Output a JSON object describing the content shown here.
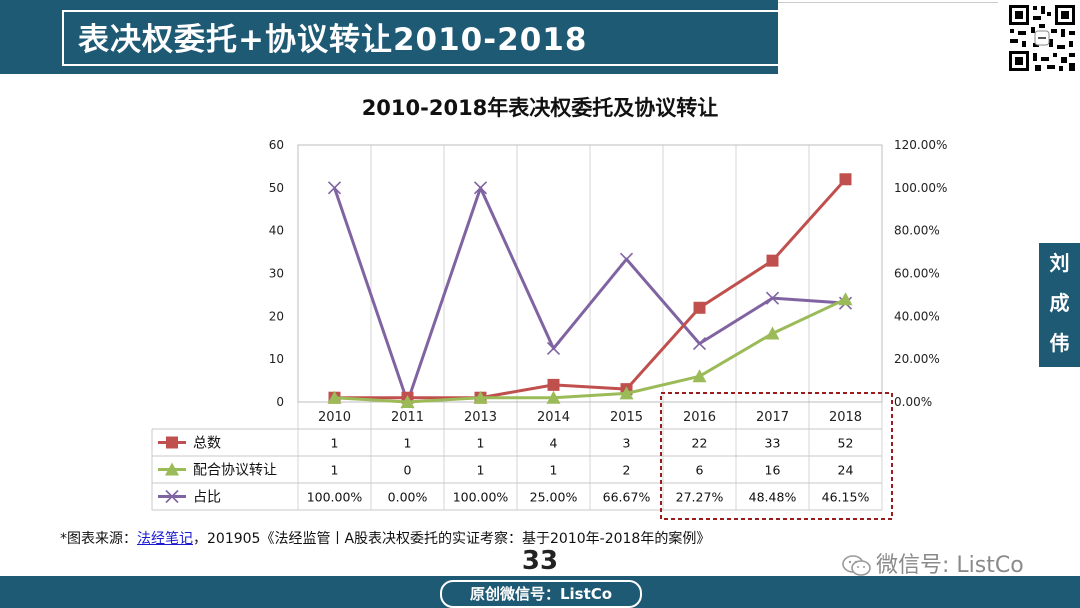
{
  "header": {
    "title": "表决权委托+协议转让2010-2018"
  },
  "side_label": [
    "刘",
    "成",
    "伟"
  ],
  "chart_data": {
    "type": "line",
    "title": "2010-2018年表决权委托及协议转让",
    "categories": [
      "2010",
      "2011",
      "2013",
      "2014",
      "2015",
      "2016",
      "2017",
      "2018"
    ],
    "y_left": {
      "ticks": [
        "0",
        "10",
        "20",
        "30",
        "40",
        "50",
        "60"
      ],
      "ylim": [
        0,
        60
      ]
    },
    "y_right": {
      "ticks": [
        "0.00%",
        "20.00%",
        "40.00%",
        "60.00%",
        "80.00%",
        "100.00%",
        "120.00%"
      ],
      "ylim": [
        0,
        120
      ]
    },
    "series": [
      {
        "name": "总数",
        "axis": "left",
        "marker": "square",
        "color": "#c0504d",
        "values": [
          1,
          1,
          1,
          4,
          3,
          22,
          33,
          52
        ],
        "labels": [
          "1",
          "1",
          "1",
          "4",
          "3",
          "22",
          "33",
          "52"
        ]
      },
      {
        "name": "配合协议转让",
        "axis": "left",
        "marker": "triangle",
        "color": "#9bbb59",
        "values": [
          1,
          0,
          1,
          1,
          2,
          6,
          16,
          24
        ],
        "labels": [
          "1",
          "0",
          "1",
          "1",
          "2",
          "6",
          "16",
          "24"
        ]
      },
      {
        "name": "占比",
        "axis": "right",
        "marker": "x",
        "color": "#8064a2",
        "values": [
          100,
          0,
          100,
          25,
          66.67,
          27.27,
          48.48,
          46.15
        ],
        "labels": [
          "100.00%",
          "0.00%",
          "100.00%",
          "25.00%",
          "66.67%",
          "27.27%",
          "48.48%",
          "46.15%"
        ]
      }
    ],
    "highlight": {
      "categories": [
        "2016",
        "2017",
        "2018"
      ],
      "color": "#9b1c1c"
    },
    "grid": "vertical-category-lines",
    "legend": "data-table"
  },
  "source": {
    "prefix": "*图表来源：",
    "link": "法经笔记",
    "suffix": "，201905《法经监管丨A股表决权委托的实证考察：基于2010年-2018年的案例》"
  },
  "page_number": "33",
  "watermark": "微信号: ListCo",
  "footer": {
    "label": "原创微信号：ListCo"
  }
}
